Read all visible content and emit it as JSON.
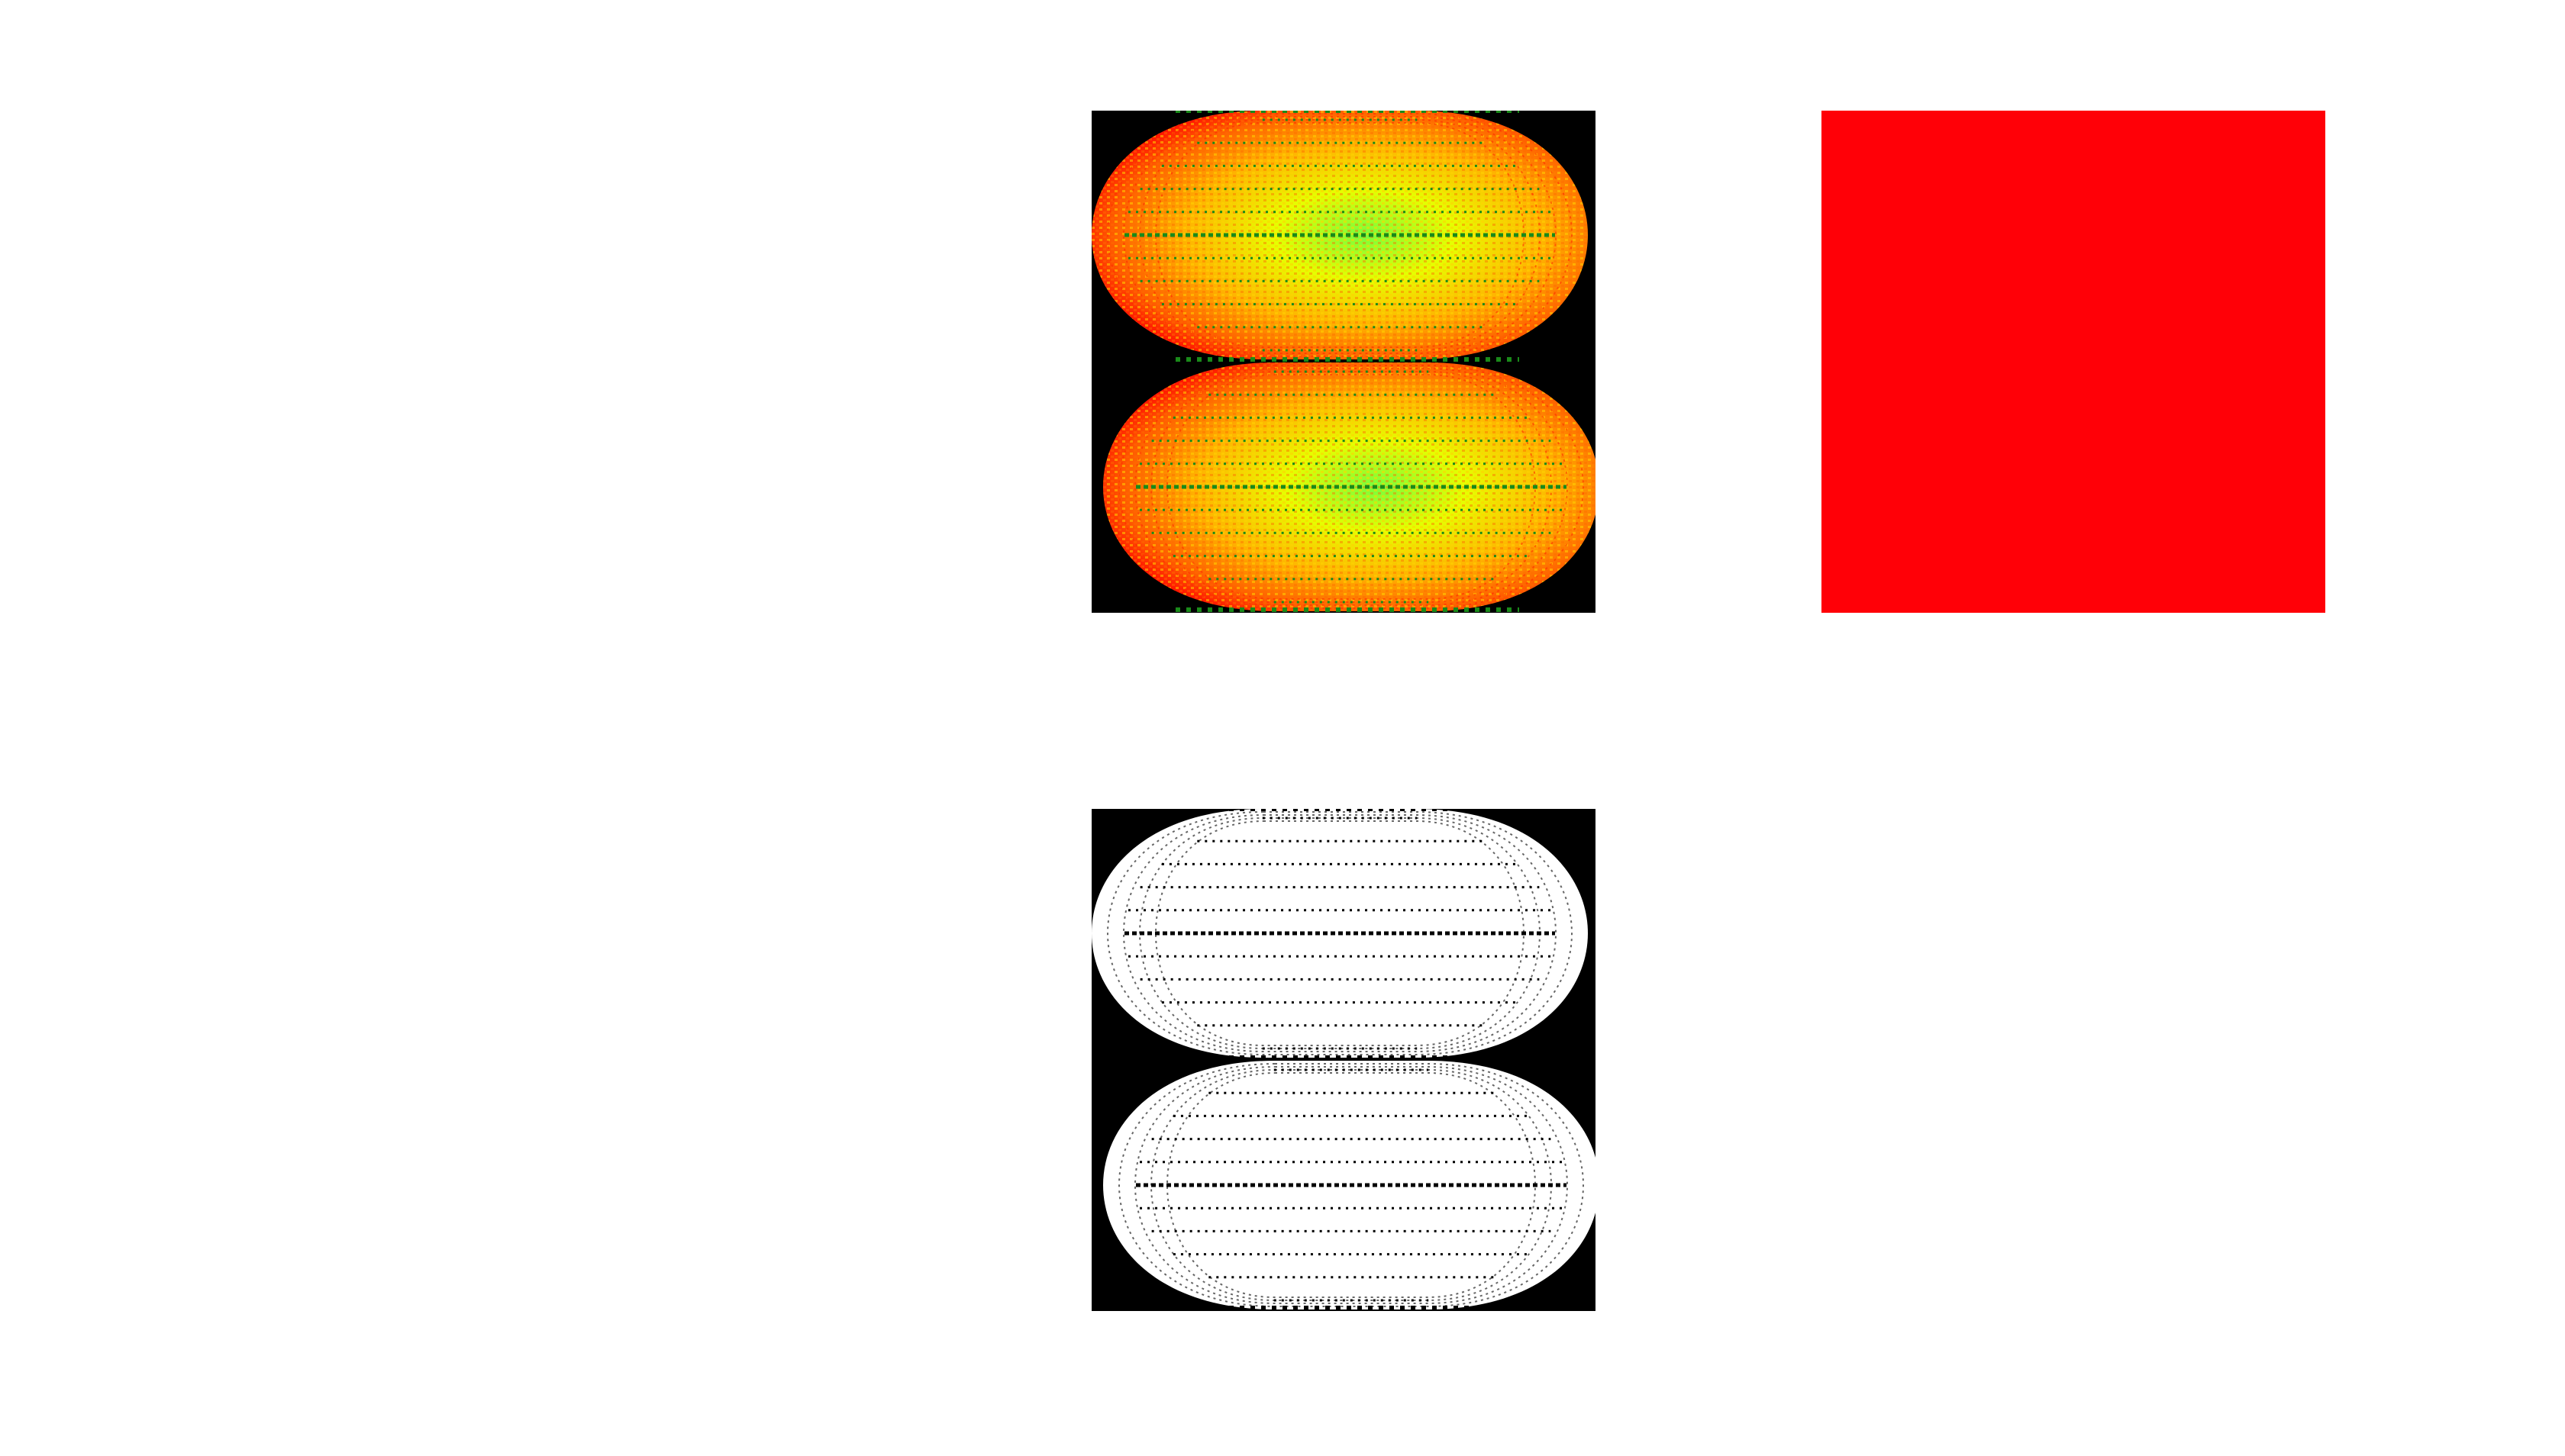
{
  "panels": {
    "color_map": {
      "background": "#000000",
      "gradient_colors": [
        "#ff0000",
        "#ff5a00",
        "#ffb400",
        "#e6ff00",
        "#78ff3c"
      ],
      "dot_color": "#1a8a1a"
    },
    "solid_fill": {
      "fill": "#ff0007"
    },
    "binary_mask": {
      "background": "#000000",
      "foreground": "#ffffff"
    }
  }
}
